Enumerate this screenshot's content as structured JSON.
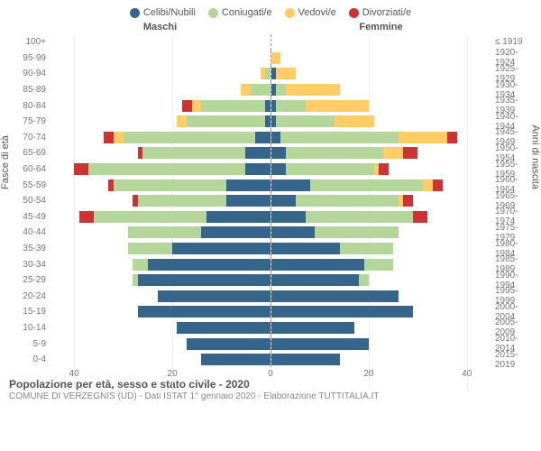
{
  "chart": {
    "type": "population-pyramid",
    "title": "Popolazione per età, sesso e stato civile - 2020",
    "subtitle": "COMUNE DI VERZEGNIS (UD) - Dati ISTAT 1° gennaio 2020 - Elaborazione TUTTITALIA.IT",
    "headers": {
      "male": "Maschi",
      "female": "Femmine"
    },
    "y_axis_left": "Fasce di età",
    "y_axis_right": "Anni di nascita",
    "colors": {
      "single": "#36648b",
      "married": "#b5d69a",
      "widowed": "#ffcc66",
      "divorced": "#cc3333",
      "grid": "#eeeeee",
      "background": "#ffffff",
      "text": "#555555"
    },
    "legend": [
      {
        "key": "single",
        "label": "Celibi/Nubili"
      },
      {
        "key": "married",
        "label": "Coniugati/e"
      },
      {
        "key": "widowed",
        "label": "Vedovi/e"
      },
      {
        "key": "divorced",
        "label": "Divorziati/e"
      }
    ],
    "x_max": 45,
    "x_ticks": [
      40,
      20,
      0,
      20,
      40
    ],
    "label_fontsize": 10,
    "title_fontsize": 12,
    "bar_gap": 0.27,
    "age_groups": [
      {
        "age": "100+",
        "born": "≤ 1919",
        "m": {
          "s": 0,
          "m": 0,
          "w": 0,
          "d": 0
        },
        "f": {
          "s": 0,
          "m": 0,
          "w": 0,
          "d": 0
        }
      },
      {
        "age": "95-99",
        "born": "1920-1924",
        "m": {
          "s": 0,
          "m": 0,
          "w": 0,
          "d": 0
        },
        "f": {
          "s": 0,
          "m": 0,
          "w": 2,
          "d": 0
        }
      },
      {
        "age": "90-94",
        "born": "1925-1929",
        "m": {
          "s": 0,
          "m": 1,
          "w": 1,
          "d": 0
        },
        "f": {
          "s": 1,
          "m": 0,
          "w": 4,
          "d": 0
        }
      },
      {
        "age": "85-89",
        "born": "1930-1934",
        "m": {
          "s": 0,
          "m": 4,
          "w": 2,
          "d": 0
        },
        "f": {
          "s": 1,
          "m": 2,
          "w": 11,
          "d": 0
        }
      },
      {
        "age": "80-84",
        "born": "1935-1939",
        "m": {
          "s": 1,
          "m": 13,
          "w": 2,
          "d": 2
        },
        "f": {
          "s": 1,
          "m": 6,
          "w": 13,
          "d": 0
        }
      },
      {
        "age": "75-79",
        "born": "1940-1944",
        "m": {
          "s": 1,
          "m": 16,
          "w": 2,
          "d": 0
        },
        "f": {
          "s": 1,
          "m": 12,
          "w": 8,
          "d": 0
        }
      },
      {
        "age": "70-74",
        "born": "1945-1949",
        "m": {
          "s": 3,
          "m": 27,
          "w": 2,
          "d": 2
        },
        "f": {
          "s": 2,
          "m": 24,
          "w": 10,
          "d": 2
        }
      },
      {
        "age": "65-69",
        "born": "1950-1954",
        "m": {
          "s": 5,
          "m": 21,
          "w": 0,
          "d": 1
        },
        "f": {
          "s": 3,
          "m": 20,
          "w": 4,
          "d": 3
        }
      },
      {
        "age": "60-64",
        "born": "1955-1959",
        "m": {
          "s": 5,
          "m": 32,
          "w": 0,
          "d": 3
        },
        "f": {
          "s": 3,
          "m": 18,
          "w": 1,
          "d": 2
        }
      },
      {
        "age": "55-59",
        "born": "1960-1964",
        "m": {
          "s": 9,
          "m": 23,
          "w": 0,
          "d": 1
        },
        "f": {
          "s": 8,
          "m": 23,
          "w": 2,
          "d": 2
        }
      },
      {
        "age": "50-54",
        "born": "1965-1969",
        "m": {
          "s": 9,
          "m": 18,
          "w": 0,
          "d": 1
        },
        "f": {
          "s": 5,
          "m": 21,
          "w": 1,
          "d": 2
        }
      },
      {
        "age": "45-49",
        "born": "1970-1974",
        "m": {
          "s": 13,
          "m": 23,
          "w": 0,
          "d": 3
        },
        "f": {
          "s": 7,
          "m": 22,
          "w": 0,
          "d": 3
        }
      },
      {
        "age": "40-44",
        "born": "1975-1979",
        "m": {
          "s": 14,
          "m": 15,
          "w": 0,
          "d": 0
        },
        "f": {
          "s": 9,
          "m": 17,
          "w": 0,
          "d": 0
        }
      },
      {
        "age": "35-39",
        "born": "1980-1984",
        "m": {
          "s": 20,
          "m": 9,
          "w": 0,
          "d": 0
        },
        "f": {
          "s": 14,
          "m": 11,
          "w": 0,
          "d": 0
        }
      },
      {
        "age": "30-34",
        "born": "1985-1989",
        "m": {
          "s": 25,
          "m": 3,
          "w": 0,
          "d": 0
        },
        "f": {
          "s": 19,
          "m": 6,
          "w": 0,
          "d": 0
        }
      },
      {
        "age": "25-29",
        "born": "1990-1994",
        "m": {
          "s": 27,
          "m": 1,
          "w": 0,
          "d": 0
        },
        "f": {
          "s": 18,
          "m": 2,
          "w": 0,
          "d": 0
        }
      },
      {
        "age": "20-24",
        "born": "1995-1999",
        "m": {
          "s": 23,
          "m": 0,
          "w": 0,
          "d": 0
        },
        "f": {
          "s": 26,
          "m": 0,
          "w": 0,
          "d": 0
        }
      },
      {
        "age": "15-19",
        "born": "2000-2004",
        "m": {
          "s": 27,
          "m": 0,
          "w": 0,
          "d": 0
        },
        "f": {
          "s": 29,
          "m": 0,
          "w": 0,
          "d": 0
        }
      },
      {
        "age": "10-14",
        "born": "2005-2009",
        "m": {
          "s": 19,
          "m": 0,
          "w": 0,
          "d": 0
        },
        "f": {
          "s": 17,
          "m": 0,
          "w": 0,
          "d": 0
        }
      },
      {
        "age": "5-9",
        "born": "2010-2014",
        "m": {
          "s": 17,
          "m": 0,
          "w": 0,
          "d": 0
        },
        "f": {
          "s": 20,
          "m": 0,
          "w": 0,
          "d": 0
        }
      },
      {
        "age": "0-4",
        "born": "2015-2019",
        "m": {
          "s": 14,
          "m": 0,
          "w": 0,
          "d": 0
        },
        "f": {
          "s": 14,
          "m": 0,
          "w": 0,
          "d": 0
        }
      }
    ]
  }
}
